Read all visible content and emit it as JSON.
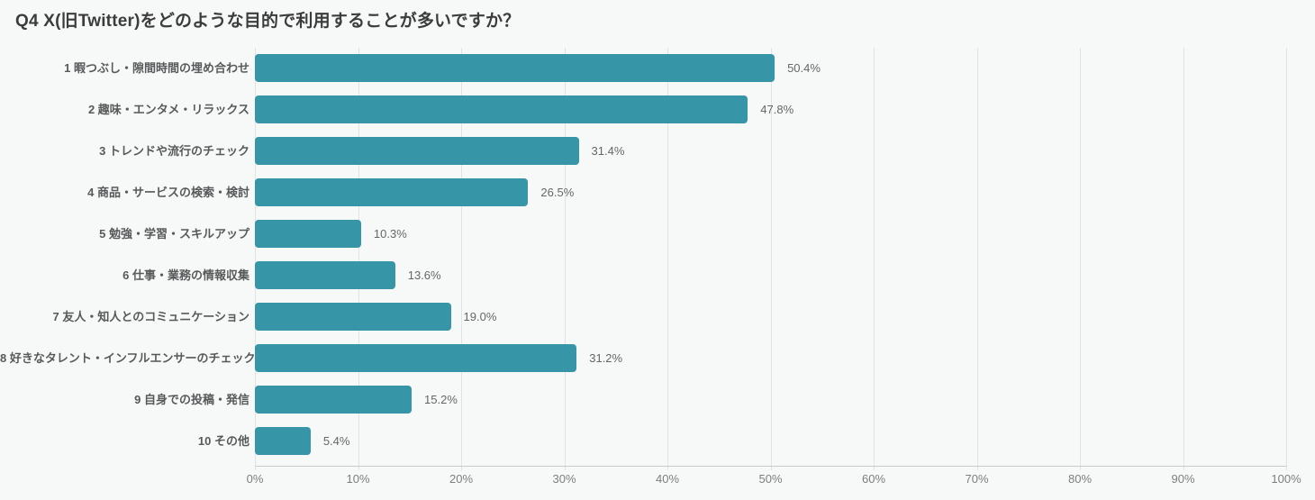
{
  "page": {
    "background": "#f7f8f8"
  },
  "colors": {
    "bar": "#3695a7",
    "title_text": "#3c3c3c",
    "category_text": "#58595a",
    "value_text": "#666666",
    "tick_text": "#7d7e7e",
    "gridline": "#e1e3e3",
    "axis_line": "#c9cbcb"
  },
  "chart_data": {
    "type": "bar",
    "orientation": "horizontal",
    "title": "Q4 X(旧Twitter)をどのような目的で利用することが多いですか？",
    "categories": [
      "1 暇つぶし・隙間時間の埋め合わせ",
      "2 趣味・エンタメ・リラックス",
      "3 トレンドや流行のチェック",
      "4 商品・サービスの検索・検討",
      "5 勉強・学習・スキルアップ",
      "6 仕事・業務の情報収集",
      "7 友人・知人とのコミュニケーション",
      "8 好きなタレント・インフルエンサーのチェック",
      "9 自身での投稿・発信",
      "10 その他"
    ],
    "values": [
      50.4,
      47.8,
      31.4,
      26.5,
      10.3,
      13.6,
      19.0,
      31.2,
      15.2,
      5.4
    ],
    "value_labels": [
      "50.4%",
      "47.8%",
      "31.4%",
      "26.5%",
      "10.3%",
      "13.6%",
      "19.0%",
      "31.2%",
      "15.2%",
      "5.4%"
    ],
    "xlabel": "",
    "ylabel": "",
    "xlim": [
      0,
      100
    ],
    "x_tick_labels": [
      "0%",
      "10%",
      "20%",
      "30%",
      "40%",
      "50%",
      "60%",
      "70%",
      "80%",
      "90%",
      "100%"
    ],
    "grid": true,
    "legend_position": "none",
    "bar_color": "#3695a7"
  }
}
